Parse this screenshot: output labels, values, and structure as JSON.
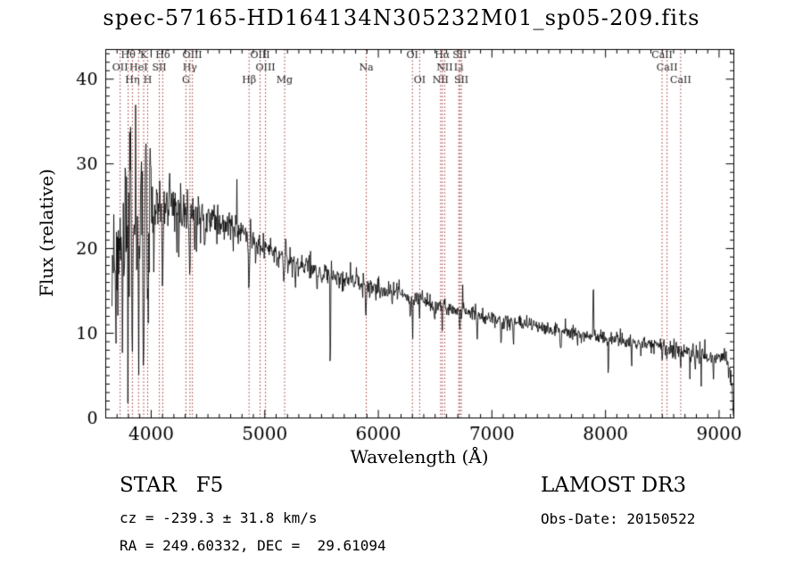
{
  "chart_data": {
    "type": "line",
    "title": "spec-57165-HD164134N305232M01_sp05-209.fits",
    "xlabel": "Wavelength (Å)",
    "ylabel": "Flux (relative)",
    "xlim": [
      3600,
      9130
    ],
    "ylim": [
      0,
      43.5
    ],
    "x_ticks": [
      4000,
      5000,
      6000,
      7000,
      8000,
      9000
    ],
    "x_minor_step": 100,
    "y_ticks": [
      0,
      10,
      20,
      30,
      40
    ],
    "y_minor_step": 1,
    "grid": false,
    "legend": "none",
    "spectrum_start": 3655,
    "continuum": [
      [
        3600,
        14
      ],
      [
        3700,
        18
      ],
      [
        3750,
        21
      ],
      [
        3800,
        23.5
      ],
      [
        3850,
        24.5
      ],
      [
        3900,
        25
      ],
      [
        3950,
        25.5
      ],
      [
        4000,
        25.5
      ],
      [
        4100,
        25
      ],
      [
        4200,
        24.8
      ],
      [
        4300,
        24.5
      ],
      [
        4400,
        24.2
      ],
      [
        4500,
        23.5
      ],
      [
        4600,
        23
      ],
      [
        4700,
        22.3
      ],
      [
        4800,
        21.6
      ],
      [
        4900,
        20.8
      ],
      [
        5000,
        20
      ],
      [
        5100,
        19.4
      ],
      [
        5200,
        18.8
      ],
      [
        5300,
        18.3
      ],
      [
        5400,
        17.8
      ],
      [
        5500,
        17.3
      ],
      [
        5600,
        16.8
      ],
      [
        5700,
        16.4
      ],
      [
        5800,
        16.2
      ],
      [
        5900,
        15.6
      ],
      [
        6000,
        15.2
      ],
      [
        6100,
        14.9
      ],
      [
        6200,
        14.6
      ],
      [
        6300,
        14.2
      ],
      [
        6400,
        13.8
      ],
      [
        6500,
        13.4
      ],
      [
        6600,
        13.0
      ],
      [
        6700,
        12.8
      ],
      [
        6800,
        12.5
      ],
      [
        6900,
        12.1
      ],
      [
        7000,
        11.8
      ],
      [
        7100,
        11.5
      ],
      [
        7200,
        11.2
      ],
      [
        7300,
        11.0
      ],
      [
        7400,
        10.8
      ],
      [
        7500,
        10.5
      ],
      [
        7600,
        10.3
      ],
      [
        7700,
        10.0
      ],
      [
        7800,
        9.8
      ],
      [
        7900,
        9.6
      ],
      [
        8000,
        9.4
      ],
      [
        8100,
        9.2
      ],
      [
        8200,
        9.0
      ],
      [
        8300,
        8.8
      ],
      [
        8400,
        8.7
      ],
      [
        8500,
        8.4
      ],
      [
        8600,
        8.1
      ],
      [
        8700,
        7.9
      ],
      [
        8800,
        7.7
      ],
      [
        8900,
        7.5
      ],
      [
        9000,
        7.3
      ],
      [
        9070,
        7.2
      ],
      [
        9110,
        4.0
      ],
      [
        9130,
        0.8
      ]
    ],
    "noise_sigma": [
      [
        3600,
        5.0
      ],
      [
        3800,
        5.0
      ],
      [
        3950,
        4.0
      ],
      [
        4050,
        2.0
      ],
      [
        4200,
        1.5
      ],
      [
        4400,
        1.2
      ],
      [
        4700,
        1.0
      ],
      [
        5000,
        0.85
      ],
      [
        5400,
        0.7
      ],
      [
        5800,
        0.6
      ],
      [
        6200,
        0.55
      ],
      [
        6600,
        0.5
      ],
      [
        7000,
        0.45
      ],
      [
        7400,
        0.42
      ],
      [
        7800,
        0.42
      ],
      [
        8200,
        0.45
      ],
      [
        8600,
        0.5
      ],
      [
        9000,
        0.55
      ],
      [
        9130,
        0.6
      ]
    ],
    "features": [
      [
        3745,
        -8,
        5
      ],
      [
        3770,
        7,
        3
      ],
      [
        3798,
        -9,
        4
      ],
      [
        3820,
        9,
        3
      ],
      [
        3835,
        -11,
        4
      ],
      [
        3862,
        7,
        3
      ],
      [
        3889,
        -12,
        4
      ],
      [
        3912,
        8,
        3
      ],
      [
        3934,
        -15,
        5
      ],
      [
        3952,
        9,
        3
      ],
      [
        3969,
        -16,
        5
      ],
      [
        3992,
        6,
        3
      ],
      [
        4026,
        -7,
        3
      ],
      [
        4101,
        -10,
        4
      ],
      [
        4227,
        -5,
        3
      ],
      [
        4340,
        -10,
        4
      ],
      [
        4383,
        -5,
        3
      ],
      [
        4471,
        -4,
        3
      ],
      [
        4861,
        -6.5,
        4
      ],
      [
        5167,
        -3.5,
        5
      ],
      [
        5270,
        -2.5,
        4
      ],
      [
        5460,
        -3,
        3
      ],
      [
        5577,
        -13,
        3
      ],
      [
        5890,
        -3,
        4
      ],
      [
        6122,
        -2,
        3
      ],
      [
        6280,
        -3,
        3
      ],
      [
        6302,
        -5,
        2.5
      ],
      [
        6362,
        -2.5,
        2.5
      ],
      [
        6495,
        -2,
        3
      ],
      [
        6563,
        -3,
        3
      ],
      [
        6717,
        -2,
        3
      ],
      [
        6870,
        -2.8,
        4
      ],
      [
        7080,
        -2.8,
        3
      ],
      [
        7190,
        -2.2,
        4
      ],
      [
        7605,
        -2.5,
        5
      ],
      [
        7893,
        6.5,
        3
      ],
      [
        8025,
        -4.2,
        3
      ],
      [
        8230,
        -2.2,
        3
      ],
      [
        8498,
        -1.8,
        2.5
      ],
      [
        8542,
        -2.2,
        2.5
      ],
      [
        8662,
        -2.4,
        2.5
      ],
      [
        8790,
        -2.3,
        3
      ],
      [
        8950,
        -2,
        3
      ]
    ],
    "spectral_lines": [
      {
        "label": "Hθ",
        "wl": 3798,
        "row": 1
      },
      {
        "label": "K",
        "wl": 3934,
        "row": 1
      },
      {
        "label": "Hδ",
        "wl": 4102,
        "row": 1
      },
      {
        "label": "OIII",
        "wl": 4363,
        "row": 1
      },
      {
        "label": "OIII",
        "wl": 4959,
        "row": 1
      },
      {
        "label": "OI",
        "wl": 6300,
        "row": 1
      },
      {
        "label": "Hα",
        "wl": 6563,
        "row": 1
      },
      {
        "label": "SII",
        "wl": 6717,
        "row": 1
      },
      {
        "label": "CaII",
        "wl": 8498,
        "row": 1
      },
      {
        "label": "OII",
        "wl": 3727,
        "row": 2
      },
      {
        "label": "HeI",
        "wl": 3889,
        "row": 2
      },
      {
        "label": "SII",
        "wl": 4072,
        "row": 2
      },
      {
        "label": "Hγ",
        "wl": 4341,
        "row": 2
      },
      {
        "label": "OIII",
        "wl": 5007,
        "row": 2
      },
      {
        "label": "Na",
        "wl": 5894,
        "row": 2
      },
      {
        "label": "NII",
        "wl": 6584,
        "row": 2
      },
      {
        "label": "Li",
        "wl": 6708,
        "row": 2
      },
      {
        "label": "CaII",
        "wl": 8542,
        "row": 2
      },
      {
        "label": "Hη",
        "wl": 3835,
        "row": 3
      },
      {
        "label": "H",
        "wl": 3969,
        "row": 3
      },
      {
        "label": "G",
        "wl": 4306,
        "row": 3
      },
      {
        "label": "Hβ",
        "wl": 4862,
        "row": 3
      },
      {
        "label": "Mg",
        "wl": 5175,
        "row": 3
      },
      {
        "label": "OI",
        "wl": 6364,
        "row": 3
      },
      {
        "label": "NII",
        "wl": 6548,
        "row": 3
      },
      {
        "label": "SII",
        "wl": 6731,
        "row": 3
      },
      {
        "label": "CaII",
        "wl": 8662,
        "row": 3
      }
    ],
    "colors": {
      "background": "#ffffff",
      "spectrum": "#000000",
      "frame": "#000000",
      "line_marker": "#a03232",
      "line_label": "#1a1a1a"
    }
  },
  "annotations": {
    "class_line": "STAR   F5",
    "cz_line": "cz = -239.3 ± 31.8 km/s",
    "radec_line": "RA = 249.60332, DEC =  29.61094",
    "survey_line": "LAMOST DR3",
    "obsdate_line": "Obs-Date: 20150522"
  }
}
